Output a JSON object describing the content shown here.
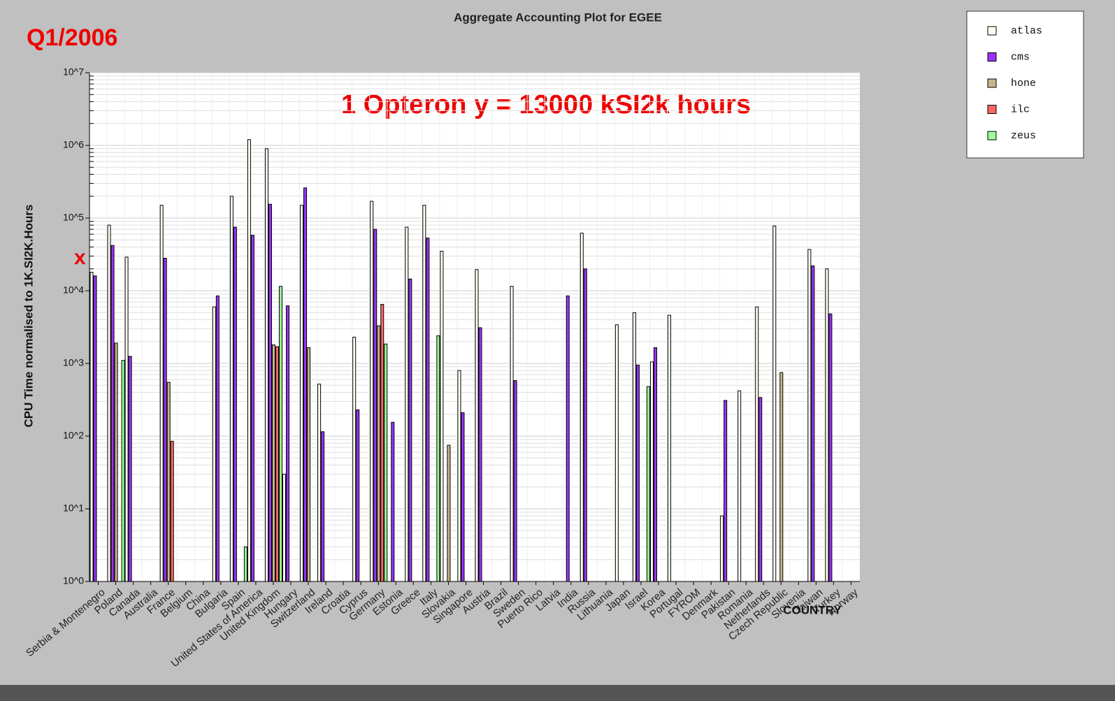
{
  "chart_data": {
    "type": "bar",
    "title": "Aggregate Accounting Plot for EGEE",
    "annotations": [
      "Q1/2006",
      "1 Opteron y = 13000 kSI2k hours",
      "x"
    ],
    "y_label": "CPU Time normalised to 1K.SI2K.Hours",
    "x_label": "COUNTRY",
    "log_scale": true,
    "grid": true,
    "legend": "top-right",
    "ylim": [
      1,
      10000000
    ],
    "yticks": [
      {
        "value": 1,
        "label": "10^0"
      },
      {
        "value": 10,
        "label": "10^1"
      },
      {
        "value": 100,
        "label": "10^2"
      },
      {
        "value": 1000,
        "label": "10^3"
      },
      {
        "value": 10000,
        "label": "10^4"
      },
      {
        "value": 100000,
        "label": "10^5"
      },
      {
        "value": 1000000,
        "label": "10^6"
      },
      {
        "value": 10000000,
        "label": "10^7"
      }
    ],
    "categories": [
      "Serbia & Montenegro",
      "Poland",
      "Canada",
      "Australia",
      "France",
      "Belgium",
      "China",
      "Bulgaria",
      "Spain",
      "United States of America",
      "United Kingdom",
      "Hungary",
      "Switzerland",
      "Ireland",
      "Croatia",
      "Cyprus",
      "Germany",
      "Estonia",
      "Greece",
      "Italy",
      "Slovakia",
      "Singapore",
      "Austria",
      "Brazil",
      "Sweden",
      "Puerto Rico",
      "Latvia",
      "India",
      "Russia",
      "Lithuania",
      "Japan",
      "Israel",
      "Korea",
      "Portugal",
      "FYROM",
      "Denmark",
      "Pakistan",
      "Romania",
      "Netherlands",
      "Czech Republic",
      "Slovenia",
      "Taiwan",
      "Turkey",
      "Norway"
    ],
    "series": [
      {
        "name": "atlas",
        "color": "#fffff0",
        "values": [
          18000,
          80000,
          29000,
          null,
          150000,
          null,
          null,
          6000,
          200000,
          1200000,
          900000,
          30,
          150000,
          520,
          null,
          2300,
          170000,
          null,
          75000,
          150000,
          35000,
          800,
          19500,
          null,
          11500,
          null,
          null,
          null,
          62000,
          null,
          3400,
          5000,
          1050,
          4600,
          null,
          null,
          8,
          420,
          6000,
          78000,
          null,
          37000,
          20000,
          null
        ]
      },
      {
        "name": "cms",
        "color": "#9933ff",
        "values": [
          16000,
          42000,
          1250,
          null,
          28000,
          null,
          null,
          8500,
          75000,
          58000,
          155000,
          6200,
          260000,
          115,
          null,
          230,
          70000,
          155,
          14500,
          53000,
          null,
          210,
          3100,
          null,
          580,
          null,
          null,
          8500,
          20000,
          null,
          null,
          950,
          1650,
          null,
          null,
          null,
          310,
          null,
          340,
          null,
          null,
          22000,
          4800,
          null
        ]
      },
      {
        "name": "hone",
        "color": "#c8b48c",
        "values": [
          null,
          1900,
          null,
          null,
          550,
          null,
          null,
          null,
          null,
          null,
          1800,
          null,
          1650,
          null,
          null,
          null,
          3300,
          null,
          null,
          null,
          75,
          null,
          null,
          null,
          null,
          null,
          null,
          null,
          null,
          null,
          null,
          null,
          null,
          null,
          null,
          null,
          null,
          null,
          null,
          750,
          null,
          null,
          null,
          null
        ]
      },
      {
        "name": "ilc",
        "color": "#ff6666",
        "values": [
          null,
          null,
          null,
          null,
          85,
          null,
          null,
          null,
          null,
          null,
          1700,
          null,
          null,
          null,
          null,
          null,
          6500,
          null,
          null,
          null,
          null,
          null,
          null,
          null,
          null,
          null,
          null,
          null,
          null,
          null,
          null,
          null,
          null,
          null,
          null,
          null,
          null,
          null,
          null,
          null,
          null,
          null,
          null,
          null
        ]
      },
      {
        "name": "zeus",
        "color": "#99ff99",
        "values": [
          null,
          1100,
          null,
          null,
          null,
          null,
          null,
          null,
          3,
          null,
          11500,
          null,
          null,
          null,
          null,
          null,
          1850,
          null,
          null,
          2400,
          null,
          null,
          null,
          null,
          null,
          null,
          null,
          null,
          null,
          null,
          null,
          480,
          null,
          null,
          null,
          null,
          null,
          null,
          null,
          null,
          null,
          null,
          null,
          null
        ]
      }
    ]
  }
}
